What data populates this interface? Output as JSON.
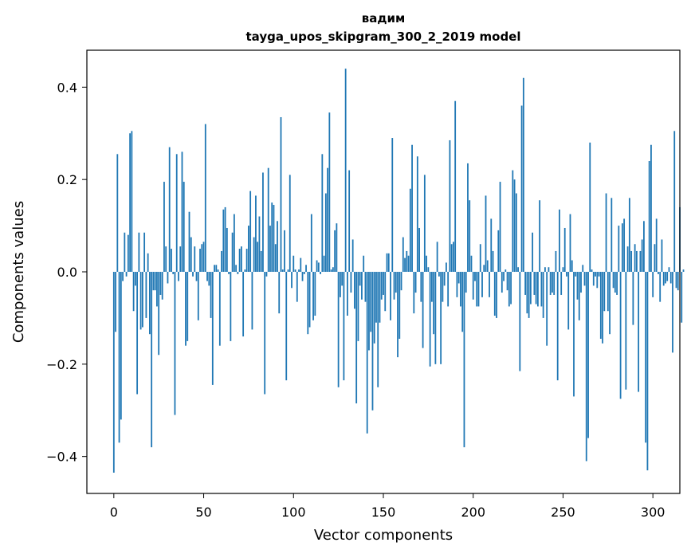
{
  "chart_data": {
    "type": "bar",
    "title": "вадим",
    "subtitle": "tayga_upos_skipgram_300_2_2019 model",
    "xlabel": "Vector components",
    "ylabel": "Components values",
    "xlim": [
      -15,
      315
    ],
    "ylim": [
      -0.48,
      0.48
    ],
    "xticks": [
      0,
      50,
      100,
      150,
      200,
      250,
      300
    ],
    "xtick_labels": [
      "0",
      "50",
      "100",
      "150",
      "200",
      "250",
      "300"
    ],
    "yticks": [
      -0.4,
      -0.2,
      0.0,
      0.2,
      0.4
    ],
    "ytick_labels": [
      "−0.4",
      "−0.2",
      "0.0",
      "0.2",
      "0.4"
    ],
    "bar_color": "#1f77b4",
    "values": [
      -0.435,
      -0.13,
      0.255,
      -0.37,
      -0.32,
      -0.02,
      0.085,
      -0.01,
      0.08,
      0.3,
      0.305,
      -0.085,
      -0.03,
      -0.265,
      0.085,
      -0.125,
      -0.12,
      0.085,
      -0.1,
      0.04,
      -0.135,
      -0.38,
      -0.04,
      -0.04,
      -0.075,
      -0.18,
      -0.05,
      -0.06,
      0.195,
      0.055,
      -0.025,
      0.27,
      0.05,
      -0.005,
      -0.31,
      0.255,
      -0.02,
      0.055,
      0.26,
      0.195,
      -0.16,
      -0.15,
      0.13,
      0.075,
      -0.01,
      0.055,
      -0.02,
      -0.105,
      0.05,
      0.06,
      0.065,
      0.32,
      -0.02,
      -0.03,
      -0.1,
      -0.245,
      0.015,
      0.015,
      0.005,
      -0.16,
      0.045,
      0.135,
      0.14,
      0.095,
      -0.005,
      -0.15,
      0.085,
      0.125,
      0.015,
      -0.005,
      0.05,
      0.055,
      -0.14,
      0.005,
      0.05,
      0.1,
      0.175,
      -0.125,
      0.075,
      0.165,
      0.065,
      0.12,
      0.045,
      0.215,
      -0.265,
      -0.01,
      0.225,
      0.1,
      0.15,
      0.145,
      0.06,
      0.11,
      -0.09,
      0.335,
      0.005,
      0.09,
      -0.235,
      0.005,
      0.21,
      -0.035,
      0.035,
      0.005,
      -0.065,
      0.005,
      0.03,
      -0.02,
      -0.005,
      0.015,
      -0.135,
      -0.12,
      0.125,
      -0.105,
      -0.095,
      0.025,
      0.02,
      -0.005,
      0.255,
      0.035,
      0.17,
      0.225,
      0.345,
      0.005,
      0.01,
      0.09,
      0.105,
      -0.25,
      -0.055,
      -0.03,
      -0.235,
      0.44,
      -0.095,
      0.22,
      -0.045,
      0.07,
      -0.08,
      -0.285,
      -0.15,
      -0.03,
      -0.06,
      0.035,
      -0.065,
      -0.35,
      -0.17,
      -0.13,
      -0.3,
      -0.155,
      -0.11,
      -0.25,
      -0.11,
      -0.06,
      -0.05,
      -0.085,
      0.04,
      0.04,
      -0.105,
      0.29,
      -0.06,
      -0.045,
      -0.185,
      -0.145,
      -0.04,
      0.075,
      0.03,
      0.045,
      0.035,
      0.18,
      0.275,
      -0.09,
      -0.045,
      0.25,
      0.095,
      -0.065,
      -0.165,
      0.21,
      0.035,
      0.01,
      -0.205,
      -0.065,
      -0.135,
      -0.2,
      0.065,
      -0.01,
      -0.2,
      -0.065,
      -0.03,
      0.02,
      -0.075,
      0.285,
      0.06,
      0.065,
      0.37,
      -0.055,
      -0.025,
      -0.075,
      -0.13,
      -0.38,
      -0.045,
      0.235,
      0.155,
      0.035,
      -0.06,
      -0.02,
      -0.075,
      -0.075,
      0.06,
      -0.055,
      0.015,
      0.165,
      0.025,
      -0.055,
      0.115,
      0.045,
      -0.095,
      -0.1,
      0.09,
      0.195,
      -0.045,
      -0.02,
      0.005,
      -0.04,
      -0.075,
      -0.07,
      0.22,
      0.2,
      0.17,
      0.01,
      -0.215,
      0.36,
      0.42,
      -0.05,
      -0.09,
      -0.1,
      -0.07,
      0.085,
      -0.05,
      -0.07,
      -0.075,
      0.155,
      -0.075,
      -0.1,
      0.01,
      -0.16,
      0.01,
      -0.05,
      -0.045,
      -0.05,
      0.045,
      -0.235,
      0.135,
      -0.05,
      0.01,
      0.095,
      -0.01,
      -0.125,
      0.125,
      0.025,
      -0.27,
      -0.01,
      -0.06,
      -0.105,
      -0.045,
      0.015,
      -0.03,
      -0.41,
      -0.36,
      0.28,
      0.005,
      -0.03,
      -0.01,
      -0.035,
      -0.01,
      -0.145,
      -0.155,
      -0.085,
      0.17,
      -0.085,
      -0.135,
      0.16,
      -0.035,
      -0.045,
      -0.05,
      0.1,
      -0.275,
      0.105,
      0.115,
      -0.255,
      0.055,
      0.16,
      0.045,
      -0.115,
      0.06,
      0.045,
      -0.26,
      0.045,
      0.07,
      0.11,
      -0.37,
      -0.43,
      0.24,
      0.275,
      -0.055,
      0.06,
      0.115,
      -0.005,
      -0.065,
      0.07,
      -0.03,
      -0.025,
      -0.02,
      0.01,
      -0.025,
      -0.175,
      0.305,
      -0.035,
      -0.04,
      0.14,
      -0.11,
      0.005
    ]
  }
}
